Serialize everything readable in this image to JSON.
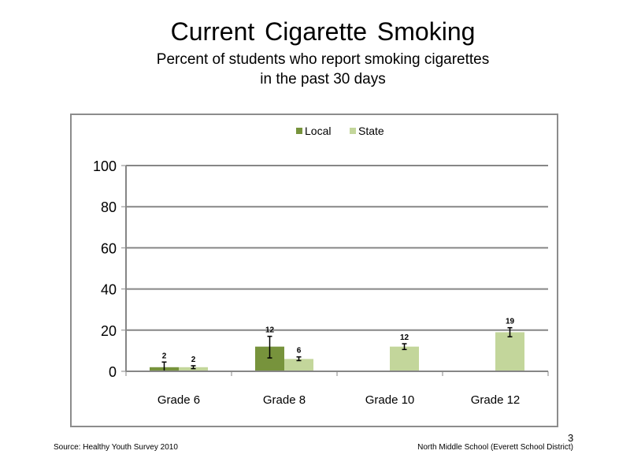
{
  "slide": {
    "title": "Current Cigarette Smoking",
    "subtitle_line1": "Percent of students who report smoking cigarettes",
    "subtitle_line2": "in the past 30 days",
    "source": "Source: Healthy Youth Survey 2010",
    "school": "North Middle School (Everett School District)",
    "page_number": "3"
  },
  "chart_data": {
    "type": "bar",
    "categories": [
      "Grade 6",
      "Grade 8",
      "Grade 10",
      "Grade 12"
    ],
    "series": [
      {
        "name": "Local",
        "values": [
          2,
          12,
          null,
          null
        ],
        "labels": [
          "2",
          "12",
          "",
          ""
        ],
        "error": [
          [
            0,
            4.5
          ],
          [
            6.5,
            17
          ],
          null,
          null
        ],
        "color": "#77933c"
      },
      {
        "name": "State",
        "values": [
          2,
          6,
          12,
          19
        ],
        "labels": [
          "2",
          "6",
          "12",
          "19"
        ],
        "error": [
          [
            1.3,
            2.7
          ],
          [
            5.2,
            7
          ],
          [
            10.6,
            13.4
          ],
          [
            16.8,
            21.2
          ]
        ],
        "color": "#c3d69b"
      }
    ],
    "ylim": [
      0,
      100
    ],
    "yticks": [
      "0",
      "20",
      "40",
      "60",
      "80",
      "100"
    ],
    "grid": true,
    "legend": "top"
  }
}
